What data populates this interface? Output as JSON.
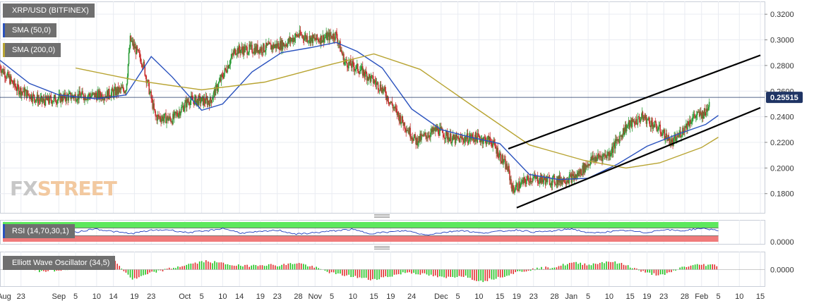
{
  "colors": {
    "price_up": "#2e9e3a",
    "price_down": "#c93030",
    "sma50": "#2a52be",
    "sma200": "#b8a432",
    "rsi_line": "#1f3fbf",
    "rsi_upper_band": "#5de85d",
    "rsi_lower_band": "#f07a7a",
    "ewo_up": "#22c322",
    "ewo_down": "#e03030",
    "legend_bg": "#6f6f6f",
    "price_tag_bg": "#1f3464",
    "trendline": "#000000",
    "grid": "#e9ecf2"
  },
  "watermark": {
    "part1": "FX",
    "part2": "STREET"
  },
  "legend": {
    "main": "XRP/USD (BITFINEX)",
    "sma50": "SMA (50,0)",
    "sma200": "SMA (200,0)",
    "rsi": "RSI (14,70,30,1)",
    "ewo": "Elliott Wave Oscillator (34,5)"
  },
  "chart_data": [
    {
      "type": "candlestick",
      "title": "XRP/USD (BITFINEX)",
      "interval": "4h",
      "x_axis": {
        "start": "Aug 18",
        "end": "Feb 15",
        "tick_labels": [
          "Aug",
          "23",
          "Sep",
          "5",
          "10",
          "14",
          "19",
          "23",
          "Oct",
          "5",
          "10",
          "14",
          "19",
          "23",
          "28",
          "Nov",
          "5",
          "10",
          "15",
          "19",
          "24",
          "Dec",
          "5",
          "10",
          "15",
          "19",
          "23",
          "28",
          "Jan",
          "5",
          "10",
          "15",
          "19",
          "23",
          "28",
          "Feb",
          "5",
          "10",
          "15"
        ]
      },
      "y_axis": {
        "ylim": [
          0.165,
          0.33
        ],
        "tick_labels": [
          "0.1800",
          "0.2000",
          "0.2200",
          "0.2400",
          "0.2600",
          "0.2800",
          "0.3000",
          "0.3200"
        ],
        "position": "right",
        "grid": true
      },
      "last_price": "0.25515",
      "anchors": [
        [
          "2019-08-18",
          0.279
        ],
        [
          "2019-08-22",
          0.262
        ],
        [
          "2019-08-28",
          0.252
        ],
        [
          "2019-09-04",
          0.256
        ],
        [
          "2019-09-12",
          0.257
        ],
        [
          "2019-09-17",
          0.262
        ],
        [
          "2019-09-18",
          0.3
        ],
        [
          "2019-09-21",
          0.282
        ],
        [
          "2019-09-24",
          0.24
        ],
        [
          "2019-09-28",
          0.238
        ],
        [
          "2019-10-02",
          0.253
        ],
        [
          "2019-10-07",
          0.252
        ],
        [
          "2019-10-13",
          0.292
        ],
        [
          "2019-10-19",
          0.293
        ],
        [
          "2019-10-25",
          0.297
        ],
        [
          "2019-10-28",
          0.304
        ],
        [
          "2019-11-01",
          0.3
        ],
        [
          "2019-11-06",
          0.304
        ],
        [
          "2019-11-08",
          0.283
        ],
        [
          "2019-11-12",
          0.276
        ],
        [
          "2019-11-17",
          0.262
        ],
        [
          "2019-11-21",
          0.24
        ],
        [
          "2019-11-25",
          0.221
        ],
        [
          "2019-11-30",
          0.23
        ],
        [
          "2019-12-04",
          0.222
        ],
        [
          "2019-12-09",
          0.224
        ],
        [
          "2019-12-13",
          0.221
        ],
        [
          "2019-12-17",
          0.198
        ],
        [
          "2019-12-18",
          0.183
        ],
        [
          "2019-12-22",
          0.192
        ],
        [
          "2019-12-28",
          0.19
        ],
        [
          "2020-01-02",
          0.193
        ],
        [
          "2020-01-06",
          0.207
        ],
        [
          "2020-01-10",
          0.211
        ],
        [
          "2020-01-14",
          0.232
        ],
        [
          "2020-01-18",
          0.24
        ],
        [
          "2020-01-22",
          0.23
        ],
        [
          "2020-01-25",
          0.219
        ],
        [
          "2020-01-30",
          0.24
        ],
        [
          "2020-02-02",
          0.243
        ],
        [
          "2020-02-03",
          0.255
        ]
      ],
      "series": [
        {
          "name": "SMA (50,0)",
          "values": [
            [
              "2019-08-18",
              0.284
            ],
            [
              "2019-08-25",
              0.266
            ],
            [
              "2019-09-01",
              0.257
            ],
            [
              "2019-09-10",
              0.254
            ],
            [
              "2019-09-17",
              0.257
            ],
            [
              "2019-09-23",
              0.287
            ],
            [
              "2019-09-28",
              0.271
            ],
            [
              "2019-10-05",
              0.245
            ],
            [
              "2019-10-10",
              0.25
            ],
            [
              "2019-10-17",
              0.275
            ],
            [
              "2019-10-24",
              0.29
            ],
            [
              "2019-10-31",
              0.294
            ],
            [
              "2019-11-06",
              0.298
            ],
            [
              "2019-11-11",
              0.291
            ],
            [
              "2019-11-17",
              0.278
            ],
            [
              "2019-11-24",
              0.246
            ],
            [
              "2019-12-01",
              0.23
            ],
            [
              "2019-12-08",
              0.224
            ],
            [
              "2019-12-15",
              0.219
            ],
            [
              "2019-12-22",
              0.195
            ],
            [
              "2019-12-29",
              0.191
            ],
            [
              "2020-01-05",
              0.192
            ],
            [
              "2020-01-12",
              0.203
            ],
            [
              "2020-01-19",
              0.217
            ],
            [
              "2020-01-26",
              0.226
            ],
            [
              "2020-02-02",
              0.234
            ],
            [
              "2020-02-05",
              0.241
            ]
          ]
        },
        {
          "name": "SMA (200,0)",
          "values": [
            [
              "2019-09-05",
              0.278
            ],
            [
              "2019-09-20",
              0.268
            ],
            [
              "2019-10-05",
              0.261
            ],
            [
              "2019-10-20",
              0.267
            ],
            [
              "2019-11-05",
              0.281
            ],
            [
              "2019-11-15",
              0.289
            ],
            [
              "2019-11-26",
              0.277
            ],
            [
              "2019-12-10",
              0.245
            ],
            [
              "2019-12-22",
              0.218
            ],
            [
              "2020-01-04",
              0.206
            ],
            [
              "2020-01-14",
              0.2
            ],
            [
              "2020-01-22",
              0.204
            ],
            [
              "2020-02-01",
              0.216
            ],
            [
              "2020-02-05",
              0.224
            ]
          ]
        }
      ],
      "trendlines": [
        {
          "from": [
            "2019-12-17",
            0.215
          ],
          "to": [
            "2020-02-15",
            0.288
          ]
        },
        {
          "from": [
            "2019-12-19",
            0.169
          ],
          "to": [
            "2020-02-15",
            0.247
          ]
        }
      ]
    },
    {
      "type": "line",
      "title": "RSI (14,70,30,1)",
      "y_tick_label": "0.0000",
      "bands": {
        "overbought": 70,
        "oversold": 30
      },
      "values": [
        45,
        62,
        40,
        55,
        48,
        66,
        52,
        41,
        57,
        61,
        47,
        53,
        68,
        44,
        50,
        59,
        38,
        46,
        55,
        63,
        42,
        49,
        56,
        35,
        47,
        58,
        44,
        52,
        60,
        49,
        54,
        66,
        43,
        51,
        57,
        46,
        62,
        55,
        68,
        59
      ]
    },
    {
      "type": "bar",
      "title": "Elliott Wave Oscillator (34,5)",
      "y_tick_label": "0.0000",
      "values": [
        0.004,
        0.002,
        -0.002,
        -0.001,
        0.002,
        0.015,
        0.01,
        -0.012,
        -0.004,
        0.001,
        0.006,
        0.01,
        0.007,
        0.004,
        0.006,
        0.005,
        0.008,
        0.002,
        -0.005,
        -0.008,
        -0.012,
        -0.008,
        -0.003,
        -0.006,
        -0.01,
        -0.007,
        -0.014,
        -0.009,
        -0.003,
        0.001,
        0.003,
        0.008,
        0.006,
        0.01,
        0.005,
        -0.004,
        -0.007,
        0.003,
        0.006,
        0.005
      ]
    }
  ]
}
